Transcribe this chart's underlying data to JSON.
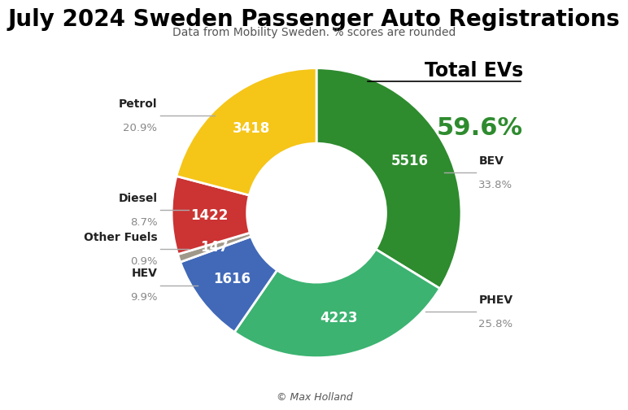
{
  "title": "July 2024 Sweden Passenger Auto Registrations",
  "subtitle": "Data from Mobility Sweden. % scores are rounded",
  "copyright": "© Max Holland",
  "segments": [
    {
      "label": "BEV",
      "value": 5516,
      "pct": "33.8%",
      "color": "#2e8b2e",
      "side": "right"
    },
    {
      "label": "PHEV",
      "value": 4223,
      "pct": "25.8%",
      "color": "#3cb371",
      "side": "right"
    },
    {
      "label": "HEV",
      "value": 1616,
      "pct": "9.9%",
      "color": "#4169b8",
      "side": "left"
    },
    {
      "label": "Other Fuels",
      "value": 147,
      "pct": "0.9%",
      "color": "#a0998a",
      "side": "left"
    },
    {
      "label": "Diesel",
      "value": 1422,
      "pct": "8.7%",
      "color": "#cc3333",
      "side": "left"
    },
    {
      "label": "Petrol",
      "value": 3418,
      "pct": "20.9%",
      "color": "#f5c518",
      "side": "left"
    }
  ],
  "total_evs_label": "Total EVs",
  "total_evs_pct": "59.6%",
  "green_color": "#2e8b2e",
  "title_fontsize": 20,
  "subtitle_fontsize": 10
}
